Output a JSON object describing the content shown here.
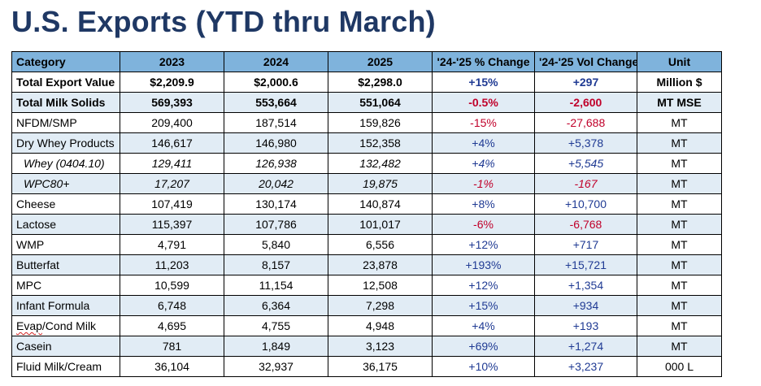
{
  "title": "U.S. Exports (YTD thru March)",
  "colors": {
    "title": "#1f3864",
    "header_bg": "#7fb3dc",
    "row_alt_bg": "#e1ecf5",
    "positive": "#1f3a93",
    "negative": "#c0002a"
  },
  "table": {
    "headers": [
      "Category",
      "2023",
      "2024",
      "2025",
      "'24-'25 % Change",
      "'24-'25 Vol Change",
      "Unit"
    ],
    "rows": [
      {
        "category": "Total Export Value",
        "y2023": "$2,209.9",
        "y2024": "$2,000.6",
        "y2025": "$2,298.0",
        "pct": "+15%",
        "vol": "+297",
        "unit": "Million $",
        "sign": "pos",
        "style": "bold"
      },
      {
        "category": "Total Milk Solids",
        "y2023": "569,393",
        "y2024": "553,664",
        "y2025": "551,064",
        "pct": "-0.5%",
        "vol": "-2,600",
        "unit": "MT MSE",
        "sign": "neg",
        "style": "bold"
      },
      {
        "category": "NFDM/SMP",
        "y2023": "209,400",
        "y2024": "187,514",
        "y2025": "159,826",
        "pct": "-15%",
        "vol": "-27,688",
        "unit": "MT",
        "sign": "neg",
        "style": "normal"
      },
      {
        "category": "Dry Whey Products",
        "y2023": "146,617",
        "y2024": "146,980",
        "y2025": "152,358",
        "pct": "+4%",
        "vol": "+5,378",
        "unit": "MT",
        "sign": "pos",
        "style": "normal"
      },
      {
        "category": "Whey (0404.10)",
        "y2023": "129,411",
        "y2024": "126,938",
        "y2025": "132,482",
        "pct": "+4%",
        "vol": "+5,545",
        "unit": "MT",
        "sign": "pos",
        "style": "italic"
      },
      {
        "category": "WPC80+",
        "y2023": "17,207",
        "y2024": "20,042",
        "y2025": "19,875",
        "pct": "-1%",
        "vol": "-167",
        "unit": "MT",
        "sign": "neg",
        "style": "italic"
      },
      {
        "category": "Cheese",
        "y2023": "107,419",
        "y2024": "130,174",
        "y2025": "140,874",
        "pct": "+8%",
        "vol": "+10,700",
        "unit": "MT",
        "sign": "pos",
        "style": "normal"
      },
      {
        "category": "Lactose",
        "y2023": "115,397",
        "y2024": "107,786",
        "y2025": "101,017",
        "pct": "-6%",
        "vol": "-6,768",
        "unit": "MT",
        "sign": "neg",
        "style": "normal"
      },
      {
        "category": "WMP",
        "y2023": "4,791",
        "y2024": "5,840",
        "y2025": "6,556",
        "pct": "+12%",
        "vol": "+717",
        "unit": "MT",
        "sign": "pos",
        "style": "normal"
      },
      {
        "category": "Butterfat",
        "y2023": "11,203",
        "y2024": "8,157",
        "y2025": "23,878",
        "pct": "+193%",
        "vol": "+15,721",
        "unit": "MT",
        "sign": "pos",
        "style": "normal"
      },
      {
        "category": "MPC",
        "y2023": "10,599",
        "y2024": "11,154",
        "y2025": "12,508",
        "pct": "+12%",
        "vol": "+1,354",
        "unit": "MT",
        "sign": "pos",
        "style": "normal"
      },
      {
        "category": "Infant Formula",
        "y2023": "6,748",
        "y2024": "6,364",
        "y2025": "7,298",
        "pct": "+15%",
        "vol": "+934",
        "unit": "MT",
        "sign": "pos",
        "style": "normal"
      },
      {
        "category": "Evap/Cond Milk",
        "y2023": "4,695",
        "y2024": "4,755",
        "y2025": "4,948",
        "pct": "+4%",
        "vol": "+193",
        "unit": "MT",
        "sign": "pos",
        "style": "normal"
      },
      {
        "category": "Casein",
        "y2023": "781",
        "y2024": "1,849",
        "y2025": "3,123",
        "pct": "+69%",
        "vol": "+1,274",
        "unit": "MT",
        "sign": "pos",
        "style": "normal"
      },
      {
        "category": "Fluid Milk/Cream",
        "y2023": "36,104",
        "y2024": "32,937",
        "y2025": "36,175",
        "pct": "+10%",
        "vol": "+3,237",
        "unit": "000 L",
        "sign": "pos",
        "style": "normal"
      }
    ]
  }
}
